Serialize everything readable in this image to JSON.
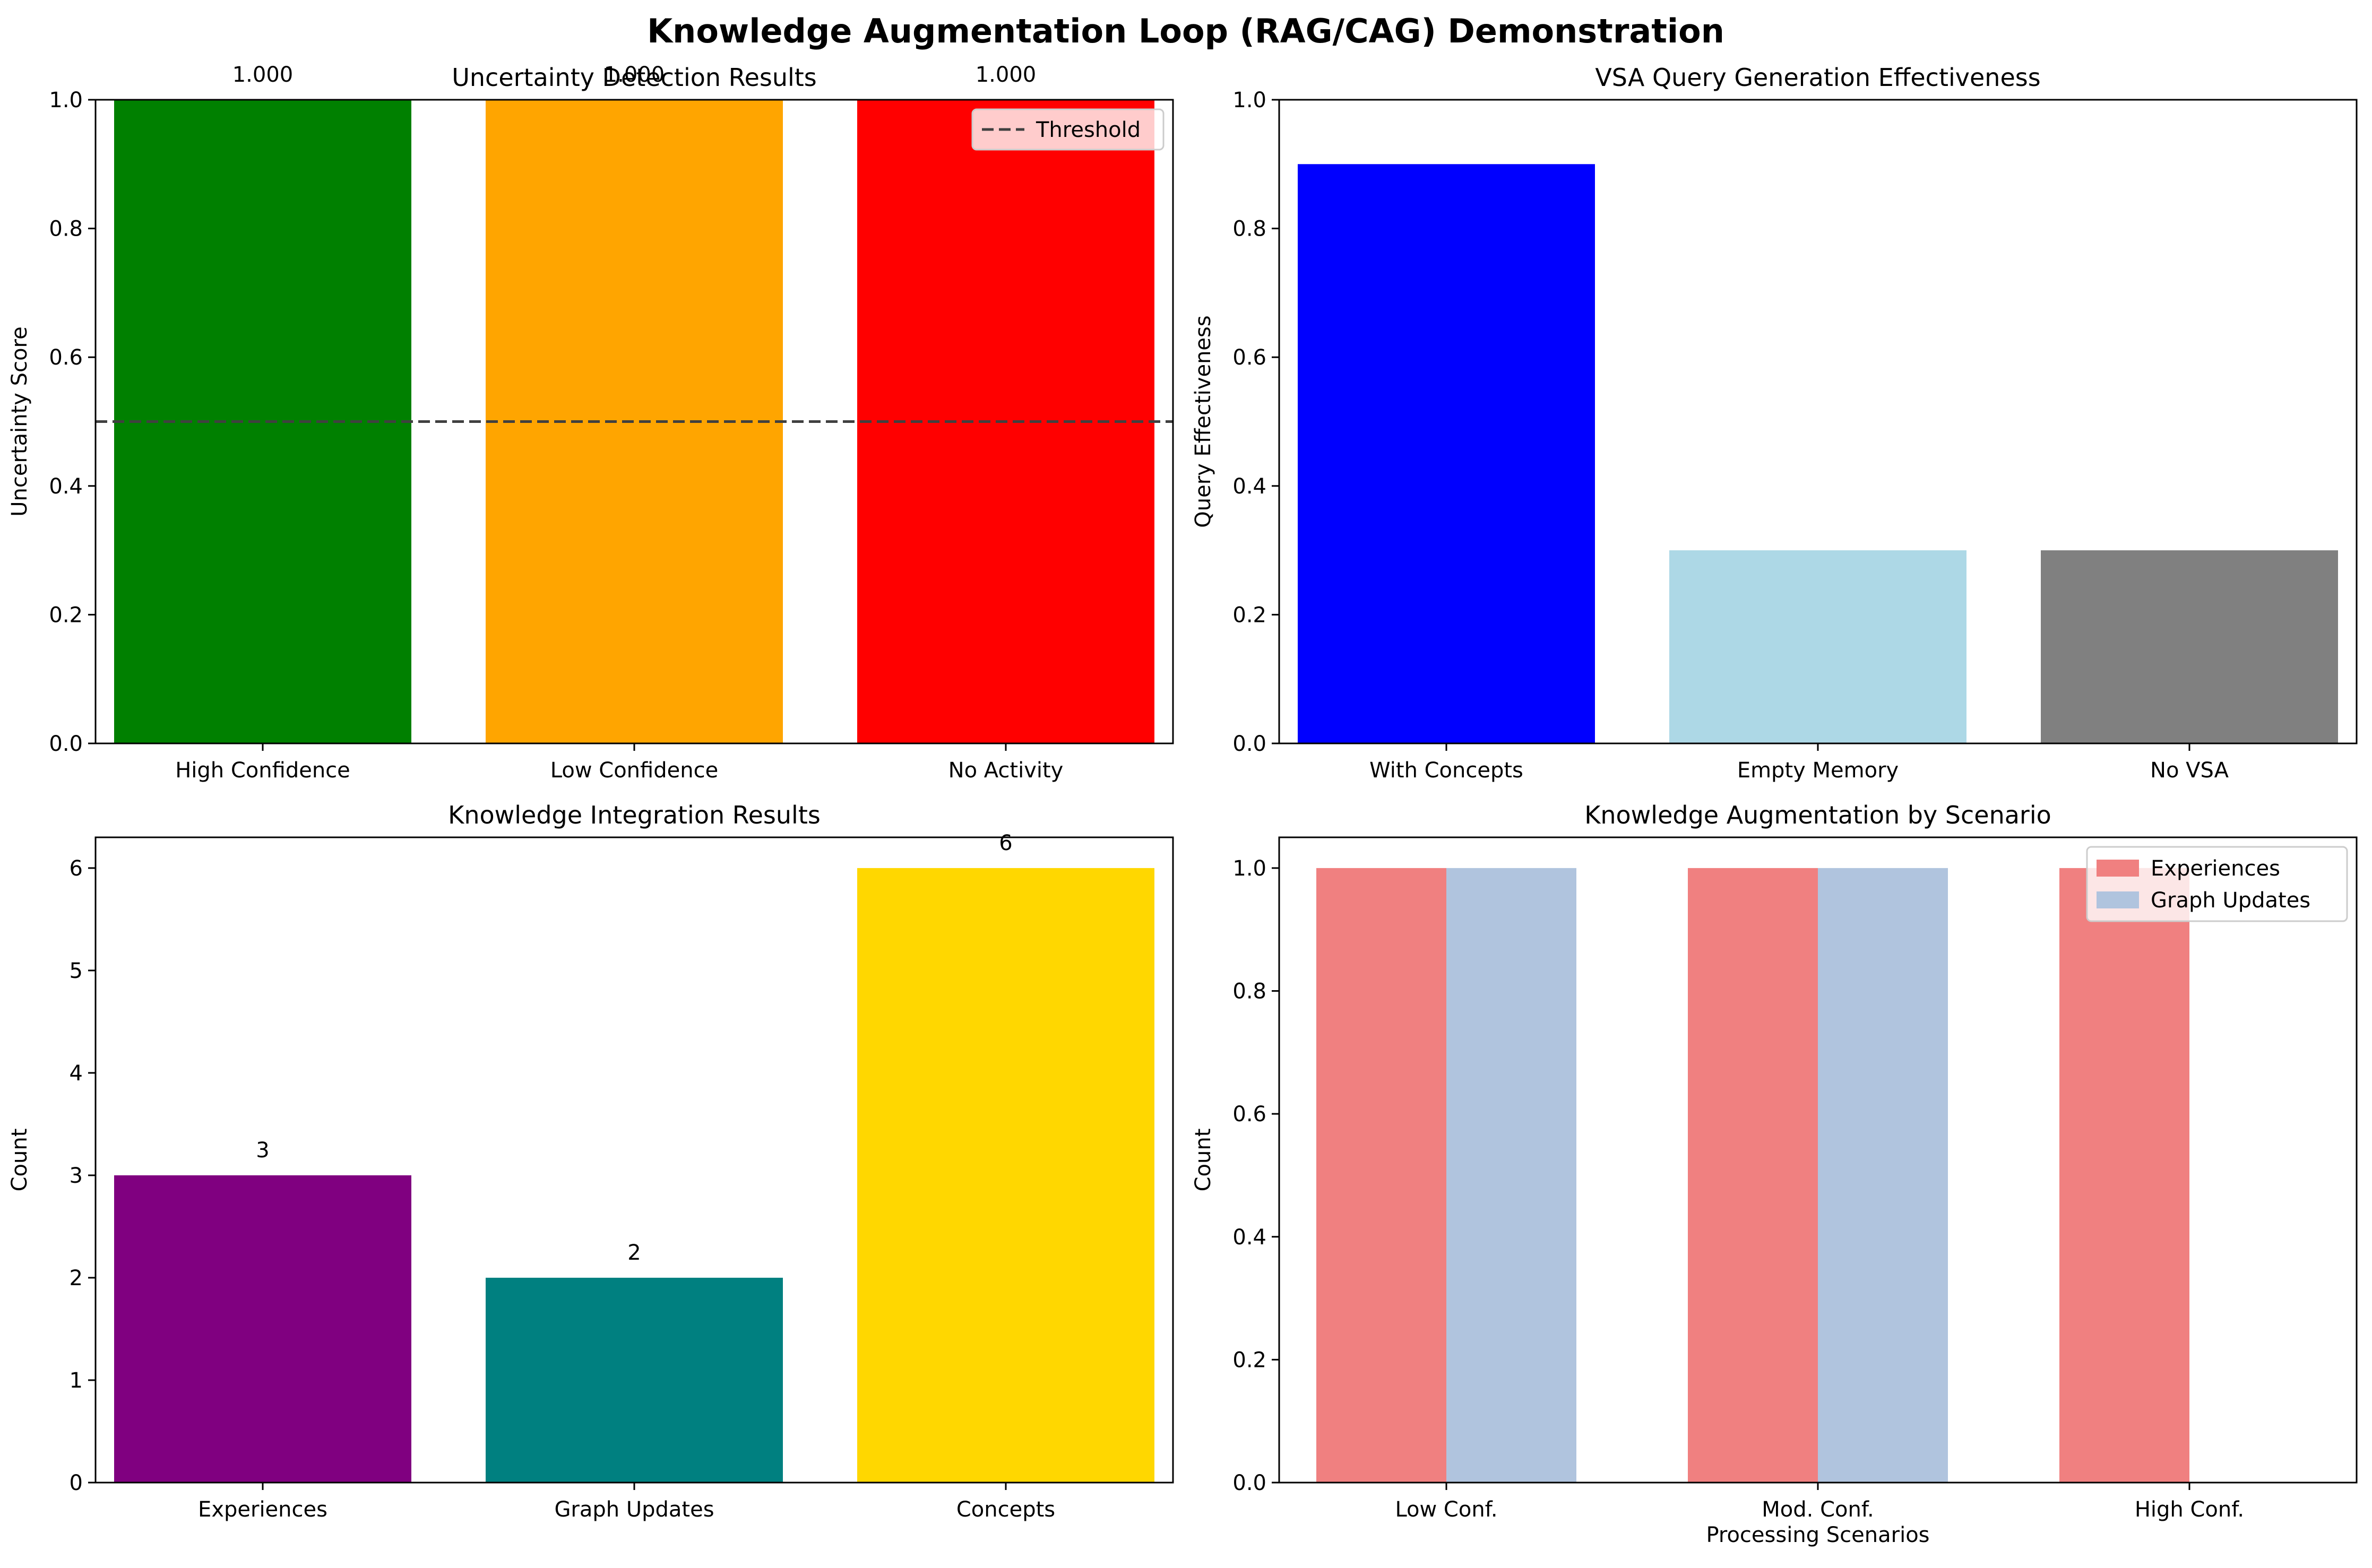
{
  "figure": {
    "title": "Knowledge Augmentation Loop (RAG/CAG) Demonstration"
  },
  "chart_data": [
    {
      "type": "bar",
      "title": "Uncertainty Detection Results",
      "categories": [
        "High Confidence",
        "Low Confidence",
        "No Activity"
      ],
      "values": [
        1.0,
        1.0,
        1.0
      ],
      "value_labels": [
        "1.000",
        "1.000",
        "1.000"
      ],
      "colors": [
        "#008000",
        "#ffa500",
        "#ff0000"
      ],
      "xlabel": "",
      "ylabel": "Uncertainty Score",
      "ylim": [
        0,
        1.0
      ],
      "yticks": [
        "0.0",
        "0.2",
        "0.4",
        "0.6",
        "0.8",
        "1.0"
      ],
      "threshold": {
        "value": 0.5,
        "label": "Threshold",
        "color": "#404040"
      },
      "legend": "top-right",
      "grid": false
    },
    {
      "type": "bar",
      "title": "VSA Query Generation Effectiveness",
      "categories": [
        "With Concepts",
        "Empty Memory",
        "No VSA"
      ],
      "values": [
        0.9,
        0.3,
        0.3
      ],
      "colors": [
        "#0000ff",
        "#add8e6",
        "#808080"
      ],
      "xlabel": "",
      "ylabel": "Query Effectiveness",
      "ylim": [
        0,
        1.0
      ],
      "yticks": [
        "0.0",
        "0.2",
        "0.4",
        "0.6",
        "0.8",
        "1.0"
      ],
      "grid": false
    },
    {
      "type": "bar",
      "title": "Knowledge Integration Results",
      "categories": [
        "Experiences",
        "Graph Updates",
        "Concepts"
      ],
      "values": [
        3,
        2,
        6
      ],
      "value_labels": [
        "3",
        "2",
        "6"
      ],
      "colors": [
        "#800080",
        "#008080",
        "#ffd700"
      ],
      "xlabel": "",
      "ylabel": "Count",
      "ylim": [
        0,
        6.3
      ],
      "yticks": [
        "0",
        "1",
        "2",
        "3",
        "4",
        "5",
        "6"
      ],
      "grid": false
    },
    {
      "type": "bar",
      "title": "Knowledge Augmentation by Scenario",
      "categories": [
        "Low Conf.",
        "Mod. Conf.",
        "High Conf."
      ],
      "series": [
        {
          "name": "Experiences",
          "values": [
            1,
            1,
            1
          ],
          "color": "#f08080"
        },
        {
          "name": "Graph Updates",
          "values": [
            1,
            1,
            0
          ],
          "color": "#b0c4de"
        }
      ],
      "xlabel": "Processing Scenarios",
      "ylabel": "Count",
      "ylim": [
        0,
        1.05
      ],
      "yticks": [
        "0.0",
        "0.2",
        "0.4",
        "0.6",
        "0.8",
        "1.0"
      ],
      "legend": "top-right",
      "grid": false
    }
  ]
}
